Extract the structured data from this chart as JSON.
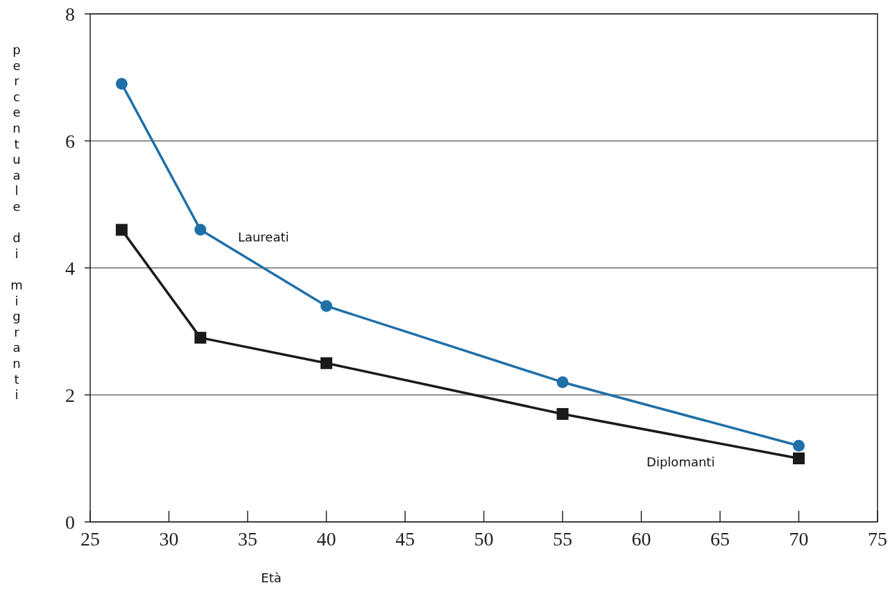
{
  "chart_data": {
    "type": "line",
    "xlabel": "Età",
    "ylabel": "percentuale di migranti",
    "x": [
      27,
      32,
      40,
      55,
      70
    ],
    "series": [
      {
        "name": "Laureati",
        "color": "#1f6fa8",
        "marker": "circle",
        "values": [
          6.9,
          4.6,
          3.4,
          2.2,
          1.2
        ]
      },
      {
        "name": "Diplomanti",
        "color": "#1a1a1a",
        "marker": "square",
        "values": [
          4.6,
          2.9,
          2.5,
          1.7,
          1.0
        ]
      }
    ],
    "xlim": [
      25,
      75
    ],
    "xticks": [
      25,
      30,
      35,
      40,
      45,
      50,
      55,
      60,
      65,
      70,
      75
    ],
    "ylim": [
      0,
      8
    ],
    "yticks": [
      0,
      2,
      4,
      6,
      8
    ],
    "grid": "y",
    "line_style": "solid"
  }
}
